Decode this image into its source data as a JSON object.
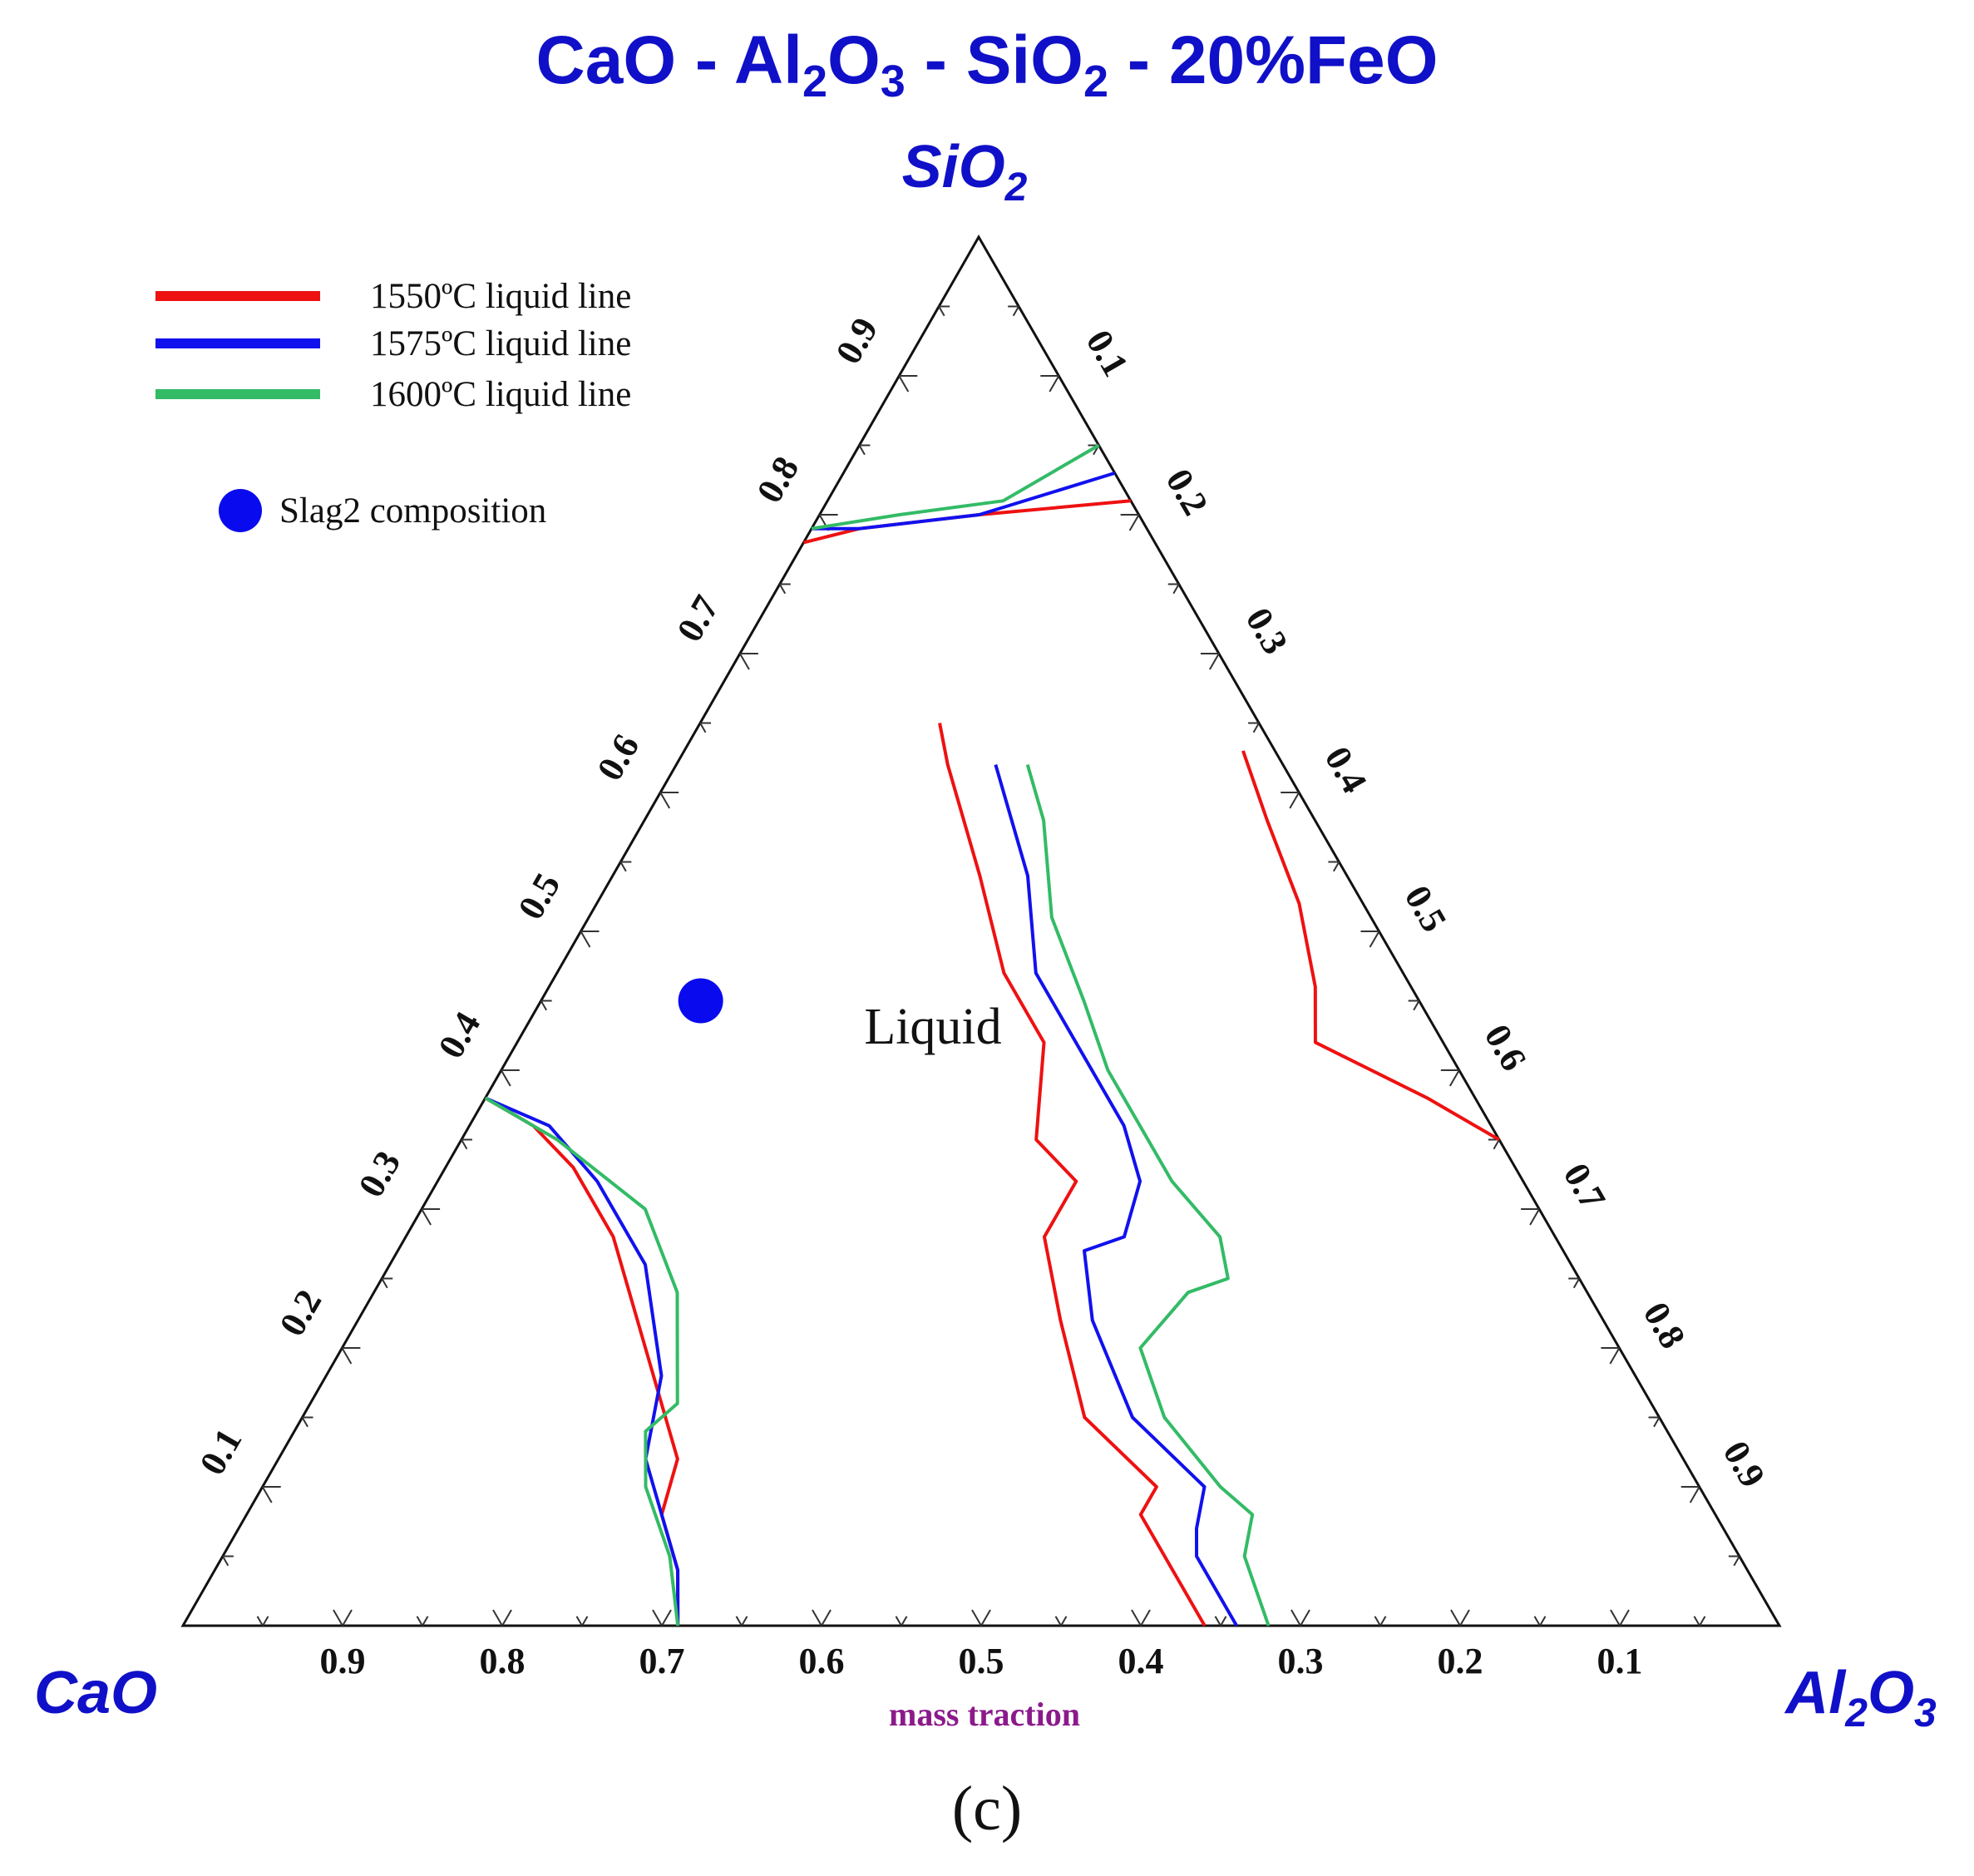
{
  "chart_data": {
    "type": "ternary",
    "title": {
      "prefix": "CaO - Al",
      "sub1": "2",
      "mid1": "O",
      "sub2": "3",
      "mid2": " - SiO",
      "sub3": "2",
      "suffix": " - 20%FeO"
    },
    "vertices": {
      "top": {
        "base": "SiO",
        "sub": "2"
      },
      "left": {
        "text": "CaO"
      },
      "right": {
        "base1": "Al",
        "sub1": "2",
        "base2": "O",
        "sub2": "3"
      }
    },
    "axis_label": "mass traction",
    "panel_label": "(c)",
    "region_label": "Liquid",
    "ticks": {
      "bottom": [
        "0.9",
        "0.8",
        "0.7",
        "0.6",
        "0.5",
        "0.4",
        "0.3",
        "0.2",
        "0.1"
      ],
      "left": [
        "0.1",
        "0.2",
        "0.3",
        "0.4",
        "0.5",
        "0.6",
        "0.7",
        "0.8",
        "0.9"
      ],
      "right": [
        "0.1",
        "0.2",
        "0.3",
        "0.4",
        "0.5",
        "0.6",
        "0.7",
        "0.8",
        "0.9"
      ]
    },
    "legend": [
      {
        "label": "1550ºC liquid line",
        "color": "#ee1111"
      },
      {
        "label": "1575ºC liquid line",
        "color": "#1111ee"
      },
      {
        "label": "1600ºC liquid line",
        "color": "#33bb66"
      }
    ],
    "marker": {
      "label": "Slag2 composition",
      "color": "#0a0aee",
      "composition": {
        "SiO2": 0.45,
        "CaO": 0.45,
        "Al2O3": 0.1
      }
    },
    "series": [
      {
        "name": "1550ºC",
        "color": "#ee1111",
        "segments": [
          [
            [
              0.78,
              0.22,
              0.0
            ],
            [
              0.79,
              0.18,
              0.03
            ],
            [
              0.8,
              0.1,
              0.1
            ],
            [
              0.81,
              0.0,
              0.19
            ]
          ],
          [
            [
              0.38,
              0.62,
              0.0
            ],
            [
              0.36,
              0.6,
              0.04
            ],
            [
              0.33,
              0.59,
              0.08
            ],
            [
              0.28,
              0.59,
              0.13
            ],
            [
              0.2,
              0.61,
              0.19
            ],
            [
              0.12,
              0.63,
              0.25
            ],
            [
              0.08,
              0.66,
              0.26
            ],
            [
              0.04,
              0.67,
              0.29
            ],
            [
              0.0,
              0.69,
              0.31
            ]
          ],
          [
            [
              0.35,
              0.0,
              0.65
            ],
            [
              0.38,
              0.03,
              0.59
            ],
            [
              0.42,
              0.08,
              0.5
            ],
            [
              0.46,
              0.06,
              0.48
            ],
            [
              0.52,
              0.04,
              0.44
            ],
            [
              0.58,
              0.03,
              0.39
            ],
            [
              0.63,
              0.02,
              0.35
            ]
          ],
          [
            [
              0.0,
              0.36,
              0.64
            ],
            [
              0.04,
              0.36,
              0.6
            ],
            [
              0.08,
              0.36,
              0.56
            ],
            [
              0.1,
              0.34,
              0.56
            ],
            [
              0.15,
              0.36,
              0.49
            ],
            [
              0.22,
              0.34,
              0.44
            ],
            [
              0.28,
              0.32,
              0.4
            ],
            [
              0.31,
              0.29,
              0.4
            ],
            [
              0.32,
              0.28,
              0.4
            ],
            [
              0.35,
              0.29,
              0.36
            ],
            [
              0.42,
              0.25,
              0.33
            ],
            [
              0.47,
              0.25,
              0.28
            ],
            [
              0.54,
              0.23,
              0.23
            ],
            [
              0.62,
              0.21,
              0.17
            ],
            [
              0.65,
              0.2,
              0.15
            ]
          ]
        ]
      },
      {
        "name": "1575ºC",
        "color": "#1111ee",
        "segments": [
          [
            [
              0.79,
              0.21,
              0.0
            ],
            [
              0.79,
              0.18,
              0.03
            ],
            [
              0.8,
              0.1,
              0.1
            ],
            [
              0.83,
              0.0,
              0.17
            ]
          ],
          [
            [
              0.38,
              0.62,
              0.0
            ],
            [
              0.36,
              0.59,
              0.05
            ],
            [
              0.32,
              0.58,
              0.1
            ],
            [
              0.26,
              0.58,
              0.16
            ],
            [
              0.18,
              0.61,
              0.21
            ],
            [
              0.12,
              0.65,
              0.23
            ],
            [
              0.08,
              0.66,
              0.26
            ],
            [
              0.04,
              0.67,
              0.29
            ],
            [
              0.0,
              0.69,
              0.31
            ]
          ],
          [
            [
              0.0,
              0.34,
              0.66
            ],
            [
              0.05,
              0.34,
              0.61
            ],
            [
              0.07,
              0.33,
              0.6
            ],
            [
              0.1,
              0.31,
              0.59
            ],
            [
              0.15,
              0.33,
              0.52
            ],
            [
              0.22,
              0.32,
              0.46
            ],
            [
              0.27,
              0.3,
              0.43
            ],
            [
              0.28,
              0.27,
              0.45
            ],
            [
              0.32,
              0.24,
              0.44
            ],
            [
              0.36,
              0.23,
              0.41
            ],
            [
              0.42,
              0.23,
              0.35
            ],
            [
              0.47,
              0.23,
              0.3
            ],
            [
              0.54,
              0.2,
              0.26
            ],
            [
              0.62,
              0.18,
              0.2
            ]
          ]
        ]
      },
      {
        "name": "1600ºC",
        "color": "#33bb66",
        "segments": [
          [
            [
              0.79,
              0.21,
              0.0
            ],
            [
              0.8,
              0.15,
              0.05
            ],
            [
              0.81,
              0.08,
              0.11
            ],
            [
              0.85,
              0.0,
              0.15
            ]
          ],
          [
            [
              0.38,
              0.62,
              0.0
            ],
            [
              0.35,
              0.59,
              0.06
            ],
            [
              0.3,
              0.56,
              0.14
            ],
            [
              0.24,
              0.57,
              0.19
            ],
            [
              0.16,
              0.61,
              0.23
            ],
            [
              0.14,
              0.64,
              0.22
            ],
            [
              0.1,
              0.66,
              0.24
            ],
            [
              0.05,
              0.67,
              0.28
            ],
            [
              0.0,
              0.69,
              0.31
            ]
          ],
          [
            [
              0.0,
              0.32,
              0.68
            ],
            [
              0.05,
              0.31,
              0.64
            ],
            [
              0.08,
              0.29,
              0.63
            ],
            [
              0.1,
              0.3,
              0.6
            ],
            [
              0.15,
              0.31,
              0.54
            ],
            [
              0.2,
              0.3,
              0.5
            ],
            [
              0.24,
              0.25,
              0.51
            ],
            [
              0.25,
              0.22,
              0.53
            ],
            [
              0.28,
              0.21,
              0.51
            ],
            [
              0.32,
              0.22,
              0.46
            ],
            [
              0.36,
              0.22,
              0.42
            ],
            [
              0.4,
              0.22,
              0.38
            ],
            [
              0.45,
              0.21,
              0.34
            ],
            [
              0.51,
              0.2,
              0.29
            ],
            [
              0.58,
              0.17,
              0.25
            ],
            [
              0.62,
              0.16,
              0.22
            ]
          ]
        ]
      }
    ]
  }
}
